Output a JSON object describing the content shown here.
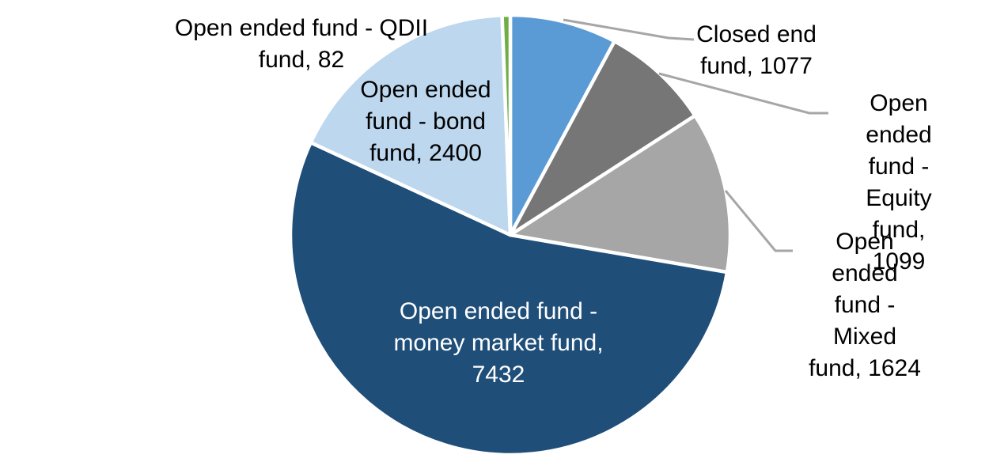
{
  "chart_data": {
    "type": "pie",
    "title": "",
    "legend_position": "none",
    "total": 13714,
    "start_angle_deg": 0,
    "direction": "clockwise",
    "slice_border_color": "#ffffff",
    "leader_line_color": "#a6a6a6",
    "slices": [
      {
        "id": "closed-end-fund",
        "label": "Closed end fund",
        "value": 1077,
        "color": "#5B9BD5",
        "label_placement": "outside",
        "data_label": "Closed end\nfund, 1077"
      },
      {
        "id": "open-ended-equity-fund",
        "label": "Open ended fund - Equity fund",
        "value": 1099,
        "color": "#767676",
        "label_placement": "outside",
        "data_label": "Open ended\nfund - Equity\nfund, 1099"
      },
      {
        "id": "open-ended-mixed-fund",
        "label": "Open ended fund - Mixed fund",
        "value": 1624,
        "color": "#A6A6A6",
        "label_placement": "outside",
        "data_label": "Open ended\nfund - Mixed\nfund, 1624"
      },
      {
        "id": "open-ended-money-market-fund",
        "label": "Open ended fund - money market fund",
        "value": 7432,
        "color": "#1F4E79",
        "label_placement": "inside",
        "data_label": "Open ended fund -\nmoney market fund,\n7432"
      },
      {
        "id": "open-ended-bond-fund",
        "label": "Open ended fund - bond fund",
        "value": 2400,
        "color": "#BDD7EE",
        "label_placement": "inside",
        "data_label": "Open ended\nfund - bond\nfund, 2400"
      },
      {
        "id": "open-ended-qdii-fund",
        "label": "Open ended fund - QDII fund",
        "value": 82,
        "color": "#70AD47",
        "label_placement": "outside",
        "data_label": "Open ended fund - QDII\nfund, 82"
      }
    ]
  }
}
